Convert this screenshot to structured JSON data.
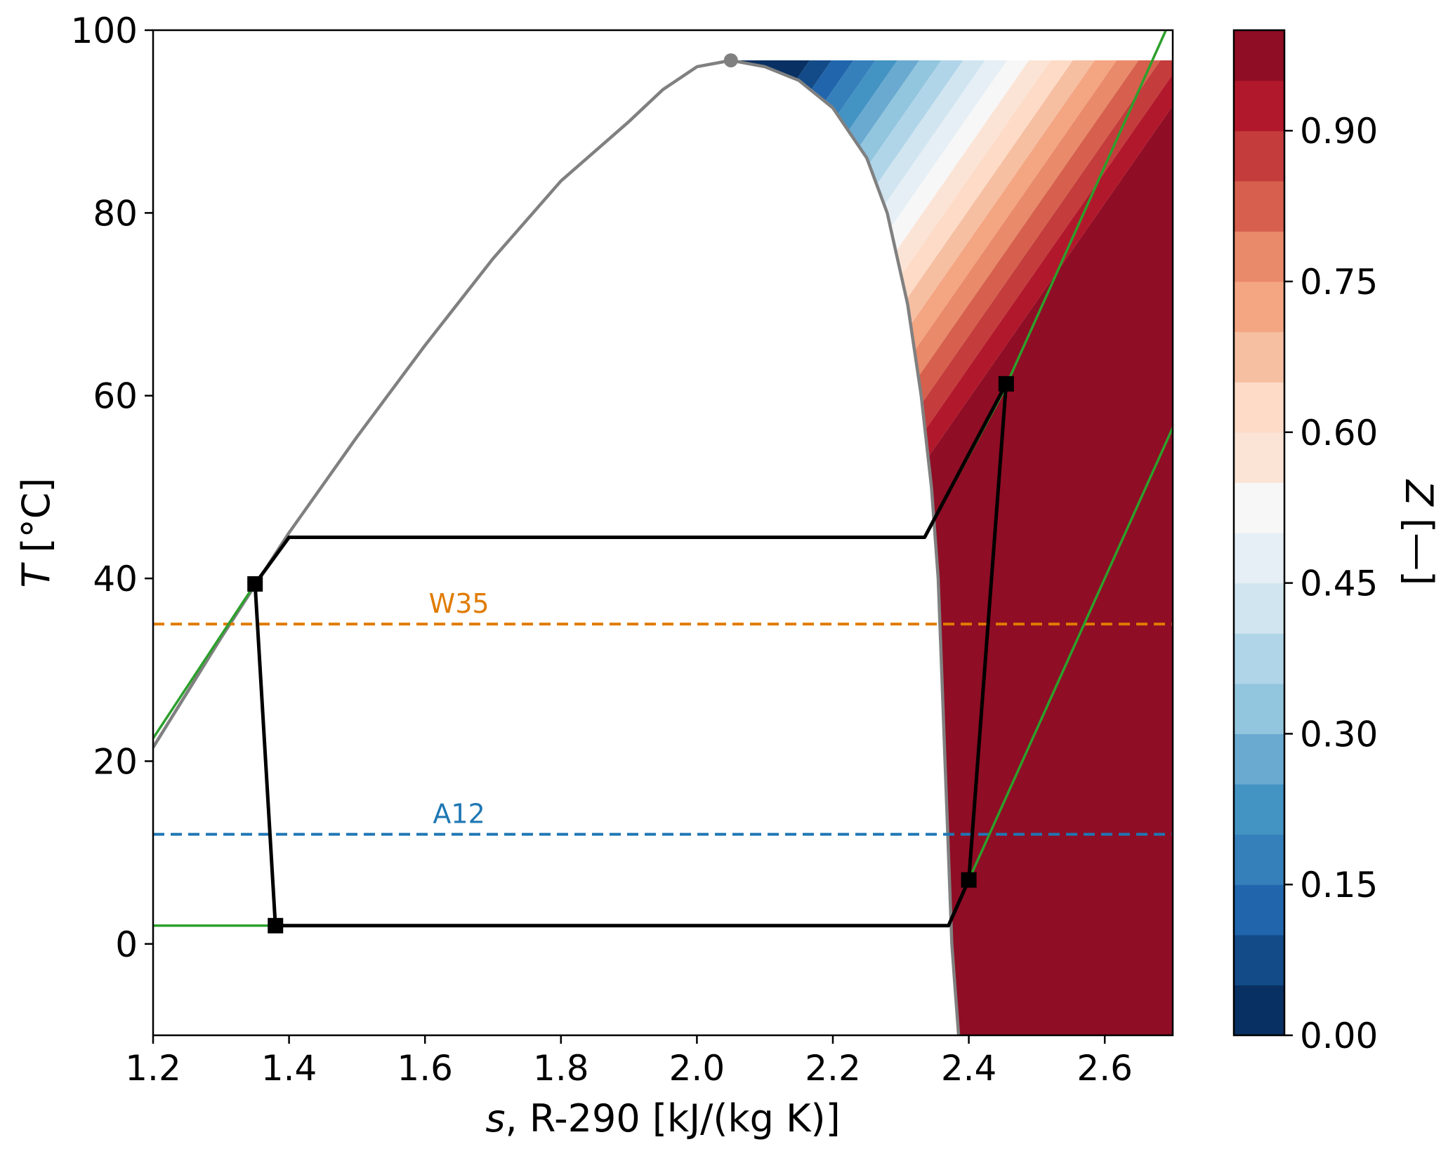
{
  "chart_data": {
    "type": "contour",
    "x": {
      "label_var": "s",
      "label_rest": ", R-290 [kJ/(kg K)]",
      "lim": [
        1.2,
        2.7
      ],
      "ticks": [
        1.2,
        1.4,
        1.6,
        1.8,
        2.0,
        2.2,
        2.4,
        2.6
      ],
      "tick_labels": [
        "1.2",
        "1.4",
        "1.6",
        "1.8",
        "2.0",
        "2.2",
        "2.4",
        "2.6"
      ]
    },
    "y": {
      "label_var": "T",
      "label_rest": " [°C]",
      "lim": [
        -10,
        100
      ],
      "ticks": [
        0,
        20,
        40,
        60,
        80,
        100
      ],
      "tick_labels": [
        "0",
        "20",
        "40",
        "60",
        "80",
        "100"
      ]
    },
    "colorbar": {
      "label_var": "Z",
      "label_rest": " [—]",
      "range": [
        0,
        1
      ],
      "levels": 20,
      "ticks": [
        0.0,
        0.15,
        0.3,
        0.45,
        0.6,
        0.75,
        0.9
      ],
      "tick_labels": [
        "0.00",
        "0.15",
        "0.30",
        "0.45",
        "0.60",
        "0.75",
        "0.90"
      ],
      "colors": [
        "#083062",
        "#134b88",
        "#2166ac",
        "#3580bb",
        "#4393c3",
        "#6aaad0",
        "#92c5de",
        "#b0d5e8",
        "#d1e5f0",
        "#e5eff5",
        "#f7f7f7",
        "#fbe4d6",
        "#fddbc7",
        "#f6bfa2",
        "#f4a582",
        "#e98a6a",
        "#d6604d",
        "#c43c3c",
        "#b2182b",
        "#8f0d25"
      ]
    },
    "contour_model": {
      "description": "Z contours of superheated vapor region, approx. linear in s and T",
      "z_at": "0.5 + 1.55*(s - 2.3) - 0.0145*(T - 80)",
      "region": "right of saturated-vapor curve, T up to 96.7"
    },
    "saturation_dome": {
      "color": "#808080",
      "liquid": [
        [
          1.2,
          21.5
        ],
        [
          1.3,
          33.5
        ],
        [
          1.4,
          45.0
        ],
        [
          1.5,
          55.5
        ],
        [
          1.6,
          65.5
        ],
        [
          1.7,
          75.0
        ],
        [
          1.8,
          83.5
        ],
        [
          1.9,
          90.0
        ],
        [
          1.95,
          93.5
        ],
        [
          2.0,
          96.0
        ],
        [
          2.05,
          96.7
        ]
      ],
      "vapor": [
        [
          2.05,
          96.7
        ],
        [
          2.1,
          96.0
        ],
        [
          2.15,
          94.5
        ],
        [
          2.2,
          91.5
        ],
        [
          2.25,
          86.0
        ],
        [
          2.28,
          80.0
        ],
        [
          2.31,
          70.0
        ],
        [
          2.33,
          60.0
        ],
        [
          2.345,
          50.0
        ],
        [
          2.355,
          40.0
        ],
        [
          2.36,
          30.0
        ],
        [
          2.365,
          20.0
        ],
        [
          2.37,
          10.0
        ],
        [
          2.375,
          0.0
        ],
        [
          2.38,
          -5.0
        ],
        [
          2.385,
          -10.0
        ]
      ],
      "critical_point": [
        2.05,
        96.7
      ]
    },
    "series": [
      {
        "name": "isobar-condenser",
        "color": "#2ca02c",
        "points": [
          [
            1.2,
            22.5
          ],
          [
            1.35,
            39.4
          ],
          [
            1.4,
            44.5
          ],
          [
            2.335,
            44.5
          ],
          [
            2.45,
            60.3
          ],
          [
            2.69,
            100
          ]
        ]
      },
      {
        "name": "isobar-evaporator",
        "color": "#2ca02c",
        "points": [
          [
            1.2,
            2
          ],
          [
            1.38,
            2
          ],
          [
            2.37,
            2
          ],
          [
            2.4,
            7
          ],
          [
            2.7,
            56.5
          ]
        ]
      },
      {
        "name": "cycle",
        "color": "#000000",
        "points": [
          [
            1.35,
            39.4
          ],
          [
            1.4,
            44.5
          ],
          [
            2.335,
            44.5
          ],
          [
            2.455,
            61.3
          ],
          [
            2.4,
            7
          ],
          [
            2.37,
            2
          ],
          [
            1.38,
            2
          ],
          [
            1.35,
            39.4
          ]
        ],
        "markers": [
          [
            1.35,
            39.4
          ],
          [
            2.455,
            61.3
          ],
          [
            2.4,
            7
          ],
          [
            1.38,
            2
          ]
        ]
      }
    ],
    "reference_lines": [
      {
        "label": "W35",
        "y": 35,
        "color": "#e07b00",
        "label_x": 1.65
      },
      {
        "label": "A12",
        "y": 12,
        "color": "#1f77b4",
        "label_x": 1.65
      }
    ]
  }
}
